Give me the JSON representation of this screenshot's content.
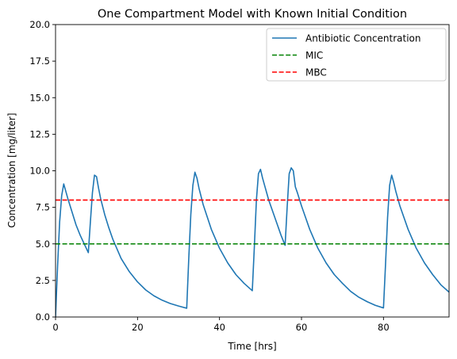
{
  "chart_data": {
    "type": "line",
    "title": "One Compartment Model with Known Initial Condition",
    "xlabel": "Time [hrs]",
    "ylabel": "Concentration [mg/liter]",
    "xlim": [
      0,
      96
    ],
    "ylim": [
      0,
      20
    ],
    "xticks": [
      0,
      20,
      40,
      60,
      80
    ],
    "xtick_labels": [
      "0",
      "20",
      "40",
      "60",
      "80"
    ],
    "yticks": [
      0,
      2.5,
      5,
      7.5,
      10,
      12.5,
      15,
      17.5,
      20
    ],
    "ytick_labels": [
      "0.0",
      "2.5",
      "5.0",
      "7.5",
      "10.0",
      "12.5",
      "15.0",
      "17.5",
      "20.0"
    ],
    "grid": false,
    "legend_position": "top-right",
    "series": [
      {
        "name": "Antibiotic Concentration",
        "color": "#1f77b4",
        "style": "solid",
        "x": [
          0,
          0.5,
          1,
          1.5,
          2,
          2.5,
          3,
          4,
          5,
          6,
          7,
          8,
          8.5,
          9,
          9.5,
          10,
          10.5,
          11,
          12,
          13,
          14,
          16,
          18,
          20,
          22,
          24,
          26,
          28,
          30,
          32,
          32.5,
          33,
          33.5,
          34,
          34.5,
          35,
          36,
          38,
          40,
          42,
          44,
          46,
          48,
          48.5,
          49,
          49.5,
          50,
          50.5,
          51,
          52,
          53,
          54,
          55,
          56,
          56.5,
          57,
          57.5,
          58,
          58.5,
          59,
          60,
          62,
          64,
          66,
          68,
          70,
          72,
          74,
          76,
          78,
          80,
          80.5,
          81,
          81.5,
          82,
          82.5,
          83,
          84,
          86,
          88,
          90,
          92,
          94,
          96
        ],
        "y": [
          0,
          3.5,
          6.5,
          8.3,
          9.1,
          8.6,
          8.1,
          7.2,
          6.3,
          5.6,
          5.0,
          4.4,
          6.5,
          8.5,
          9.7,
          9.6,
          8.8,
          8.1,
          7.0,
          6.1,
          5.3,
          4.0,
          3.1,
          2.4,
          1.85,
          1.45,
          1.15,
          0.92,
          0.75,
          0.6,
          4.0,
          7.0,
          9.0,
          9.9,
          9.5,
          8.8,
          7.7,
          6.0,
          4.7,
          3.7,
          2.9,
          2.3,
          1.8,
          4.8,
          8.0,
          9.8,
          10.1,
          9.5,
          9.0,
          8.0,
          7.2,
          6.4,
          5.6,
          4.9,
          7.5,
          9.8,
          10.2,
          10.0,
          8.9,
          8.5,
          7.6,
          6.0,
          4.7,
          3.7,
          2.9,
          2.3,
          1.75,
          1.35,
          1.05,
          0.8,
          0.62,
          3.6,
          6.8,
          9.0,
          9.7,
          9.2,
          8.6,
          7.6,
          6.0,
          4.7,
          3.7,
          2.9,
          2.2,
          1.7
        ]
      },
      {
        "name": "MIC",
        "color": "#008000",
        "style": "dashed",
        "x": [
          0,
          96
        ],
        "y": [
          5,
          5
        ]
      },
      {
        "name": "MBC",
        "color": "#ff0000",
        "style": "dashed",
        "x": [
          0,
          96
        ],
        "y": [
          8,
          8
        ]
      }
    ]
  }
}
